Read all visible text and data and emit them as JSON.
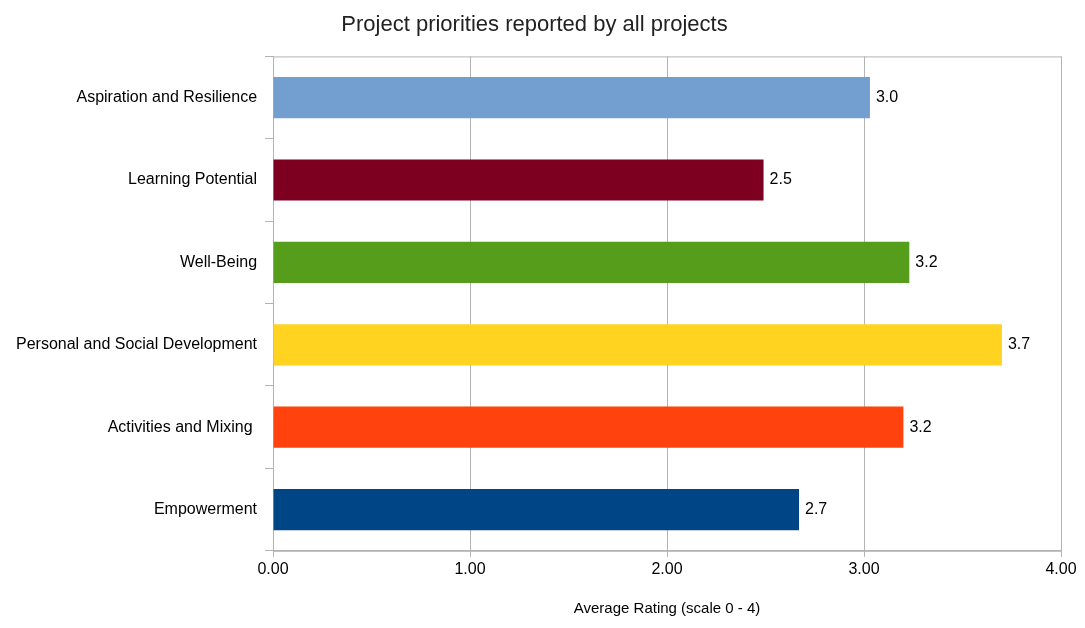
{
  "chart_data": {
    "type": "bar",
    "orientation": "horizontal",
    "title": "Project priorities reported by all projects",
    "xlabel": "Average Rating (scale 0 - 4)",
    "categories": [
      "Aspiration and Resilience",
      "Learning Potential",
      "Well-Being",
      "Personal and Social Development",
      "Activities and Mixing ",
      "Empowerment"
    ],
    "values": [
      3.03,
      2.49,
      3.23,
      3.7,
      3.2,
      2.67
    ],
    "value_labels": [
      "3.0",
      "2.5",
      "3.2",
      "3.7",
      "3.2",
      "2.7"
    ],
    "colors": [
      "#729fcf",
      "#7e0021",
      "#579d1c",
      "#ffd320",
      "#ff420e",
      "#004586"
    ],
    "xlim": [
      0,
      4
    ],
    "xticks": [
      {
        "value": 0,
        "label": "0.00"
      },
      {
        "value": 1,
        "label": "1.00"
      },
      {
        "value": 2,
        "label": "2.00"
      },
      {
        "value": 3,
        "label": "3.00"
      },
      {
        "value": 4,
        "label": "4.00"
      }
    ],
    "grid": "x",
    "legend": false
  }
}
